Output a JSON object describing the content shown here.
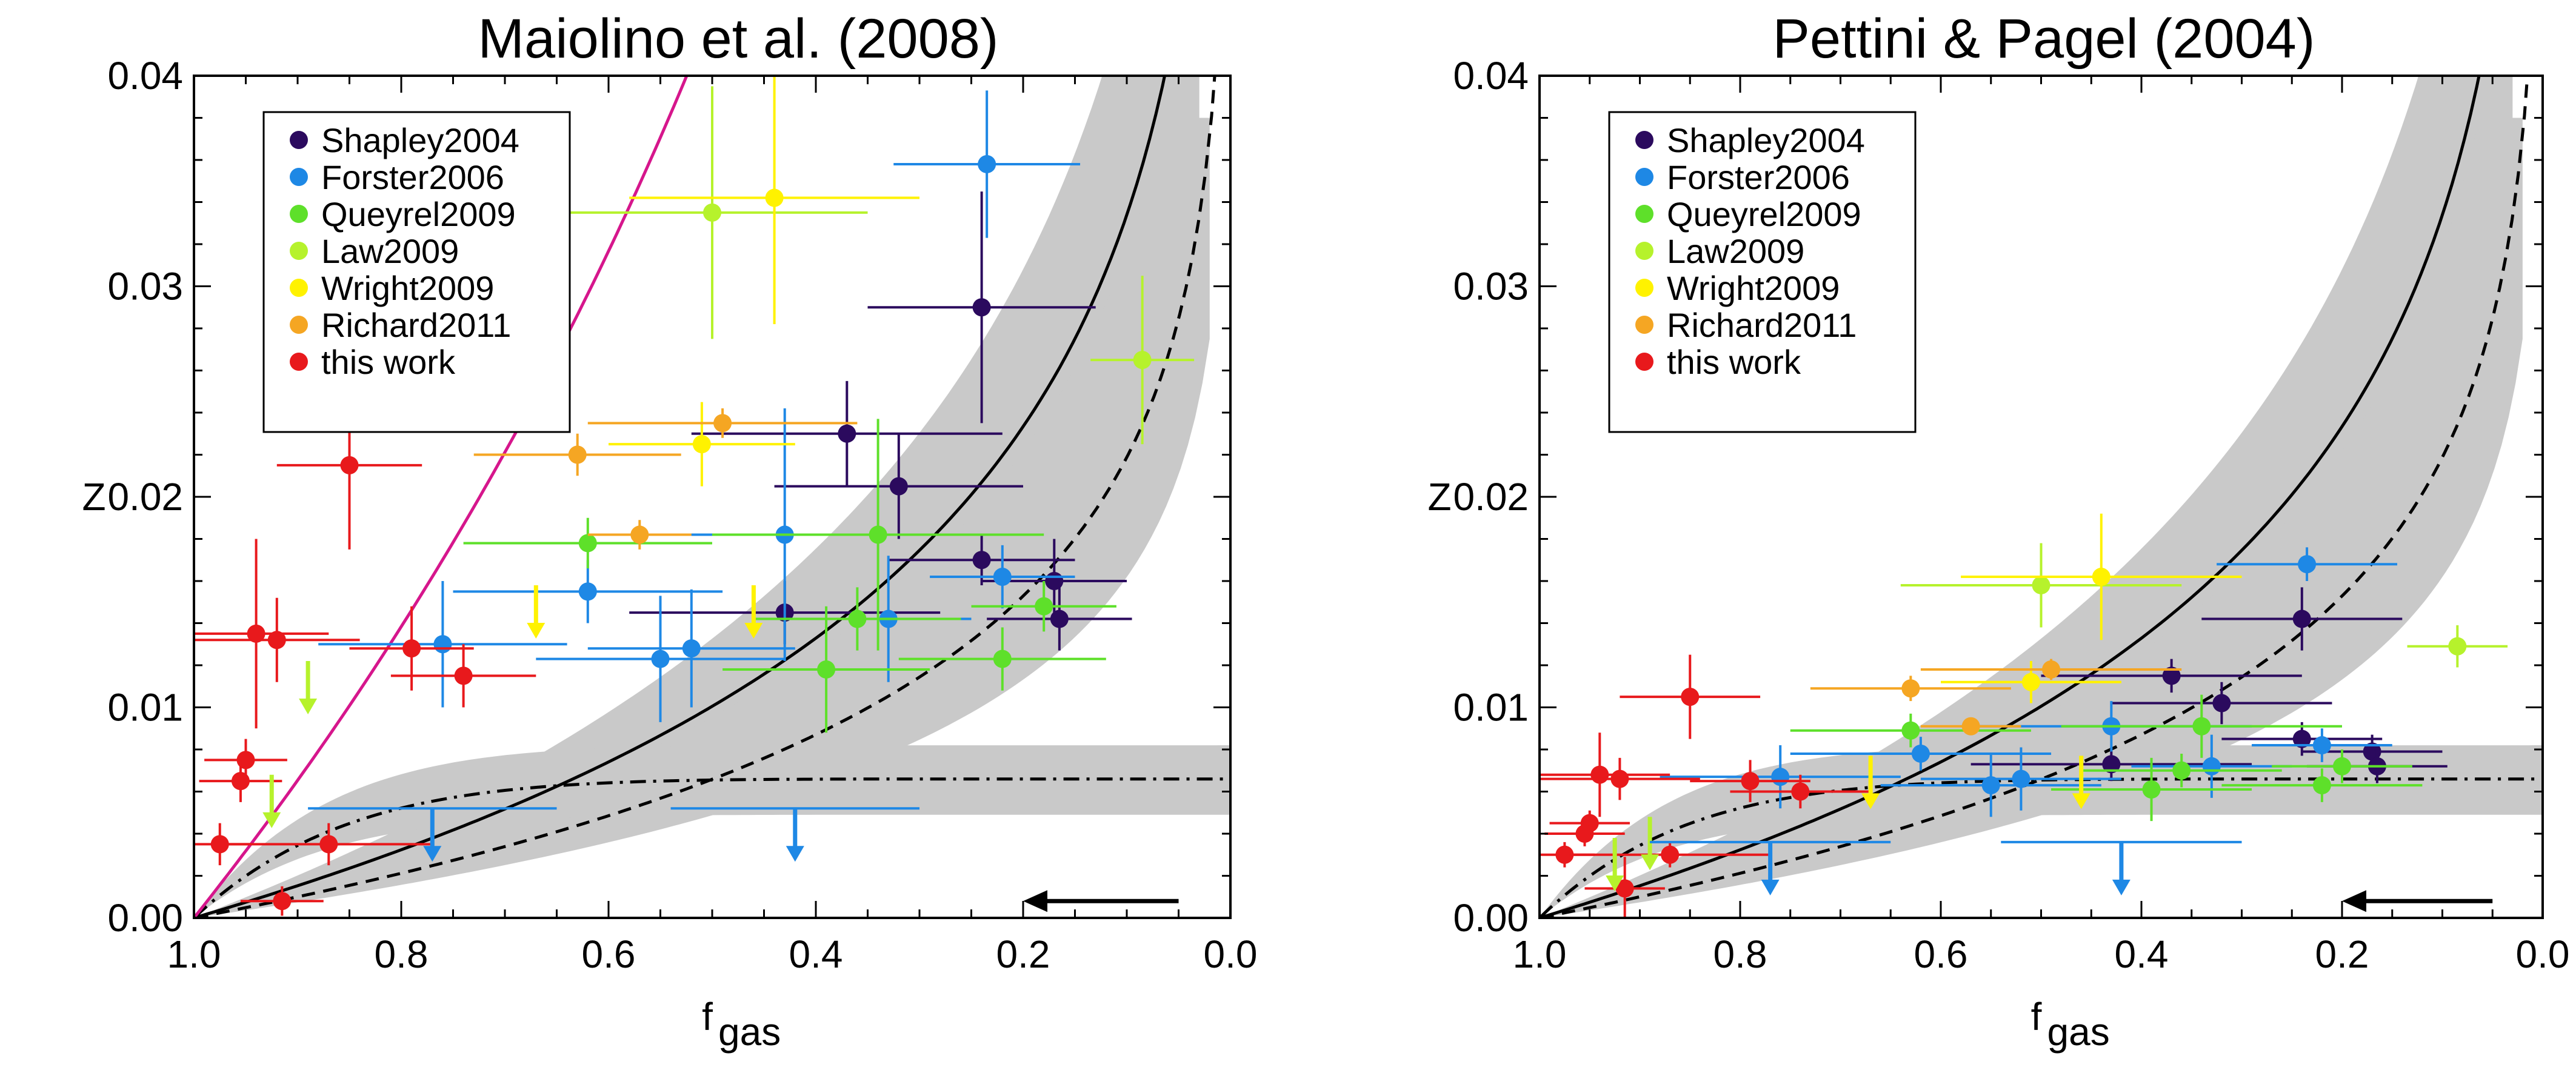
{
  "chart_data": [
    {
      "type": "scatter",
      "title": "Maiolino et al. (2008)",
      "xlabel": "f",
      "xlabel_sub": "gas",
      "ylabel": "Z",
      "xlim": [
        1.0,
        0.0
      ],
      "ylim": [
        0.0,
        0.04
      ],
      "x_ticks": [
        "1.0",
        "0.8",
        "0.6",
        "0.4",
        "0.2",
        "0.0"
      ],
      "y_ticks": [
        "0.00",
        "0.01",
        "0.02",
        "0.03",
        "0.04"
      ],
      "legend_position": "top-left",
      "legend": [
        {
          "name": "Shapley2004",
          "color": "#2b0a5e"
        },
        {
          "name": "Forster2006",
          "color": "#1e88e5"
        },
        {
          "name": "Queyrel2009",
          "color": "#5ee02a"
        },
        {
          "name": "Law2009",
          "color": "#b6f22c"
        },
        {
          "name": "Wright2009",
          "color": "#fff200"
        },
        {
          "name": "Richard2011",
          "color": "#f5a623"
        },
        {
          "name": "this work",
          "color": "#e8191c"
        }
      ],
      "series": [
        {
          "name": "Shapley2004",
          "color": "#2b0a5e",
          "points": [
            {
              "x": 0.24,
              "y": 0.029,
              "xerr": 0.11,
              "yerr": 0.0055
            },
            {
              "x": 0.37,
              "y": 0.023,
              "xerr": 0.15,
              "yerr": 0.0025
            },
            {
              "x": 0.32,
              "y": 0.0205,
              "xerr": 0.12,
              "yerr": 0.0025
            },
            {
              "x": 0.24,
              "y": 0.017,
              "xerr": 0.09,
              "yerr": 0.0012
            },
            {
              "x": 0.17,
              "y": 0.016,
              "xerr": 0.07,
              "yerr": 0.002
            },
            {
              "x": 0.165,
              "y": 0.0142,
              "xerr": 0.07,
              "yerr": 0.0015
            },
            {
              "x": 0.43,
              "y": 0.0145,
              "xerr": 0.15,
              "yerr": 0.0015
            }
          ]
        },
        {
          "name": "Forster2006",
          "color": "#1e88e5",
          "points": [
            {
              "x": 0.235,
              "y": 0.0358,
              "xerr": 0.09,
              "yerr": 0.0035
            },
            {
              "x": 0.43,
              "y": 0.0182,
              "xerr": 0.14,
              "yerr": 0.006
            },
            {
              "x": 0.62,
              "y": 0.0155,
              "xerr": 0.13,
              "yerr": 0.0015
            },
            {
              "x": 0.76,
              "y": 0.013,
              "xerr": 0.12,
              "yerr": 0.003
            },
            {
              "x": 0.55,
              "y": 0.0123,
              "xerr": 0.12,
              "yerr": 0.003
            },
            {
              "x": 0.52,
              "y": 0.0128,
              "xerr": 0.1,
              "yerr": 0.0028
            },
            {
              "x": 0.33,
              "y": 0.0142,
              "xerr": 0.08,
              "yerr": 0.003
            },
            {
              "x": 0.22,
              "y": 0.0162,
              "xerr": 0.07,
              "yerr": 0.0015
            }
          ]
        },
        {
          "name": "Queyrel2009",
          "color": "#5ee02a",
          "points": [
            {
              "x": 0.62,
              "y": 0.0178,
              "xerr": 0.12,
              "yerr": 0.0012
            },
            {
              "x": 0.34,
              "y": 0.0182,
              "xerr": 0.16,
              "yerr": 0.0055
            },
            {
              "x": 0.36,
              "y": 0.0142,
              "xerr": 0.1,
              "yerr": 0.0015
            },
            {
              "x": 0.39,
              "y": 0.0118,
              "xerr": 0.1,
              "yerr": 0.003
            },
            {
              "x": 0.22,
              "y": 0.0123,
              "xerr": 0.1,
              "yerr": 0.0015
            },
            {
              "x": 0.18,
              "y": 0.0148,
              "xerr": 0.07,
              "yerr": 0.0012
            }
          ]
        },
        {
          "name": "Law2009",
          "color": "#b6f22c",
          "points": [
            {
              "x": 0.5,
              "y": 0.0335,
              "xerr": 0.15,
              "yerr": 0.006
            },
            {
              "x": 0.085,
              "y": 0.0265,
              "xerr": 0.05,
              "yerr": 0.004
            }
          ]
        },
        {
          "name": "Wright2009",
          "color": "#fff200",
          "points": [
            {
              "x": 0.44,
              "y": 0.0342,
              "xerr": 0.14,
              "yerr": 0.006
            },
            {
              "x": 0.51,
              "y": 0.0225,
              "xerr": 0.09,
              "yerr": 0.002
            }
          ]
        },
        {
          "name": "Richard2011",
          "color": "#f5a623",
          "points": [
            {
              "x": 0.63,
              "y": 0.022,
              "xerr": 0.1,
              "yerr": 0.001
            },
            {
              "x": 0.49,
              "y": 0.0235,
              "xerr": 0.13,
              "yerr": 0.0007
            },
            {
              "x": 0.57,
              "y": 0.0182,
              "xerr": 0.05,
              "yerr": 0.0007
            }
          ]
        },
        {
          "name": "this work",
          "color": "#e8191c",
          "points": [
            {
              "x": 0.85,
              "y": 0.0215,
              "xerr": 0.07,
              "yerr": 0.004
            },
            {
              "x": 0.94,
              "y": 0.0135,
              "xerr": 0.07,
              "yerr": 0.0045
            },
            {
              "x": 0.92,
              "y": 0.0132,
              "xerr": 0.08,
              "yerr": 0.002
            },
            {
              "x": 0.79,
              "y": 0.0128,
              "xerr": 0.06,
              "yerr": 0.002
            },
            {
              "x": 0.74,
              "y": 0.0115,
              "xerr": 0.07,
              "yerr": 0.0015
            },
            {
              "x": 0.95,
              "y": 0.0075,
              "xerr": 0.04,
              "yerr": 0.001
            },
            {
              "x": 0.955,
              "y": 0.0065,
              "xerr": 0.04,
              "yerr": 0.001
            },
            {
              "x": 0.975,
              "y": 0.0035,
              "xerr": 0.03,
              "yerr": 0.001
            },
            {
              "x": 0.87,
              "y": 0.0035,
              "xerr": 0.1,
              "yerr": 0.001
            },
            {
              "x": 0.915,
              "y": 0.0008,
              "xerr": 0.04,
              "yerr": 0.0007
            }
          ]
        }
      ],
      "upper_limits": [
        {
          "x": 0.89,
          "y": 0.0122,
          "color": "#b6f22c"
        },
        {
          "x": 0.925,
          "y": 0.0068,
          "color": "#b6f22c"
        },
        {
          "x": 0.67,
          "y": 0.0158,
          "color": "#fff200"
        },
        {
          "x": 0.46,
          "y": 0.0158,
          "color": "#fff200"
        },
        {
          "x": 0.77,
          "y": 0.0052,
          "color": "#1e88e5",
          "xerr": 0.12
        },
        {
          "x": 0.42,
          "y": 0.0052,
          "color": "#1e88e5",
          "xerr": 0.12
        }
      ],
      "annotation_arrow": {
        "from_x": 0.05,
        "to_x": 0.2,
        "y": 0.0008
      }
    },
    {
      "type": "scatter",
      "title": "Pettini & Pagel (2004)",
      "xlabel": "f",
      "xlabel_sub": "gas",
      "ylabel": "Z",
      "xlim": [
        1.0,
        0.0
      ],
      "ylim": [
        0.0,
        0.04
      ],
      "x_ticks": [
        "1.0",
        "0.8",
        "0.6",
        "0.4",
        "0.2",
        "0.0"
      ],
      "y_ticks": [
        "0.00",
        "0.01",
        "0.02",
        "0.03",
        "0.04"
      ],
      "legend_position": "top-left",
      "legend": [
        {
          "name": "Shapley2004",
          "color": "#2b0a5e"
        },
        {
          "name": "Forster2006",
          "color": "#1e88e5"
        },
        {
          "name": "Queyrel2009",
          "color": "#5ee02a"
        },
        {
          "name": "Law2009",
          "color": "#b6f22c"
        },
        {
          "name": "Wright2009",
          "color": "#fff200"
        },
        {
          "name": "Richard2011",
          "color": "#f5a623"
        },
        {
          "name": "this work",
          "color": "#e8191c"
        }
      ],
      "series": [
        {
          "name": "Shapley2004",
          "color": "#2b0a5e",
          "points": [
            {
              "x": 0.24,
              "y": 0.0142,
              "xerr": 0.1,
              "yerr": 0.0015
            },
            {
              "x": 0.37,
              "y": 0.0115,
              "xerr": 0.13,
              "yerr": 0.0008
            },
            {
              "x": 0.32,
              "y": 0.0102,
              "xerr": 0.11,
              "yerr": 0.001
            },
            {
              "x": 0.24,
              "y": 0.0085,
              "xerr": 0.08,
              "yerr": 0.0008
            },
            {
              "x": 0.17,
              "y": 0.0079,
              "xerr": 0.07,
              "yerr": 0.0008
            },
            {
              "x": 0.165,
              "y": 0.0072,
              "xerr": 0.07,
              "yerr": 0.0008
            },
            {
              "x": 0.43,
              "y": 0.0073,
              "xerr": 0.14,
              "yerr": 0.0008
            }
          ]
        },
        {
          "name": "Forster2006",
          "color": "#1e88e5",
          "points": [
            {
              "x": 0.235,
              "y": 0.0168,
              "xerr": 0.09,
              "yerr": 0.0008
            },
            {
              "x": 0.43,
              "y": 0.0091,
              "xerr": 0.14,
              "yerr": 0.0012
            },
            {
              "x": 0.62,
              "y": 0.0078,
              "xerr": 0.13,
              "yerr": 0.0008
            },
            {
              "x": 0.76,
              "y": 0.0067,
              "xerr": 0.12,
              "yerr": 0.0015
            },
            {
              "x": 0.55,
              "y": 0.0063,
              "xerr": 0.11,
              "yerr": 0.0015
            },
            {
              "x": 0.52,
              "y": 0.0066,
              "xerr": 0.1,
              "yerr": 0.0015
            },
            {
              "x": 0.33,
              "y": 0.0072,
              "xerr": 0.08,
              "yerr": 0.0015
            },
            {
              "x": 0.22,
              "y": 0.0082,
              "xerr": 0.07,
              "yerr": 0.0008
            }
          ]
        },
        {
          "name": "Queyrel2009",
          "color": "#5ee02a",
          "points": [
            {
              "x": 0.63,
              "y": 0.0089,
              "xerr": 0.12,
              "yerr": 0.0008
            },
            {
              "x": 0.34,
              "y": 0.0091,
              "xerr": 0.14,
              "yerr": 0.0015
            },
            {
              "x": 0.36,
              "y": 0.007,
              "xerr": 0.1,
              "yerr": 0.0008
            },
            {
              "x": 0.39,
              "y": 0.0061,
              "xerr": 0.1,
              "yerr": 0.0015
            },
            {
              "x": 0.22,
              "y": 0.0063,
              "xerr": 0.1,
              "yerr": 0.0008
            },
            {
              "x": 0.2,
              "y": 0.0072,
              "xerr": 0.07,
              "yerr": 0.0008
            }
          ]
        },
        {
          "name": "Law2009",
          "color": "#b6f22c",
          "points": [
            {
              "x": 0.5,
              "y": 0.0158,
              "xerr": 0.14,
              "yerr": 0.002
            },
            {
              "x": 0.085,
              "y": 0.0129,
              "xerr": 0.05,
              "yerr": 0.001
            }
          ]
        },
        {
          "name": "Wright2009",
          "color": "#fff200",
          "points": [
            {
              "x": 0.44,
              "y": 0.0162,
              "xerr": 0.14,
              "yerr": 0.003
            },
            {
              "x": 0.51,
              "y": 0.0112,
              "xerr": 0.09,
              "yerr": 0.001
            }
          ]
        },
        {
          "name": "Richard2011",
          "color": "#f5a623",
          "points": [
            {
              "x": 0.63,
              "y": 0.0109,
              "xerr": 0.1,
              "yerr": 0.0006
            },
            {
              "x": 0.49,
              "y": 0.0118,
              "xerr": 0.13,
              "yerr": 0.0005
            },
            {
              "x": 0.57,
              "y": 0.0091,
              "xerr": 0.05,
              "yerr": 0.0004
            }
          ]
        },
        {
          "name": "this work",
          "color": "#e8191c",
          "points": [
            {
              "x": 0.85,
              "y": 0.0105,
              "xerr": 0.07,
              "yerr": 0.002
            },
            {
              "x": 0.94,
              "y": 0.0068,
              "xerr": 0.07,
              "yerr": 0.002
            },
            {
              "x": 0.92,
              "y": 0.0066,
              "xerr": 0.08,
              "yerr": 0.001
            },
            {
              "x": 0.79,
              "y": 0.0065,
              "xerr": 0.06,
              "yerr": 0.001
            },
            {
              "x": 0.74,
              "y": 0.006,
              "xerr": 0.07,
              "yerr": 0.0008
            },
            {
              "x": 0.95,
              "y": 0.0045,
              "xerr": 0.04,
              "yerr": 0.0006
            },
            {
              "x": 0.955,
              "y": 0.004,
              "xerr": 0.04,
              "yerr": 0.0006
            },
            {
              "x": 0.975,
              "y": 0.003,
              "xerr": 0.03,
              "yerr": 0.0006
            },
            {
              "x": 0.87,
              "y": 0.003,
              "xerr": 0.1,
              "yerr": 0.0006
            },
            {
              "x": 0.915,
              "y": 0.0014,
              "xerr": 0.04,
              "yerr": 0.0015
            }
          ]
        }
      ],
      "upper_limits": [
        {
          "x": 0.89,
          "y": 0.0048,
          "color": "#b6f22c"
        },
        {
          "x": 0.925,
          "y": 0.0038,
          "color": "#b6f22c"
        },
        {
          "x": 0.67,
          "y": 0.0077,
          "color": "#fff200"
        },
        {
          "x": 0.46,
          "y": 0.0077,
          "color": "#fff200"
        },
        {
          "x": 0.77,
          "y": 0.0036,
          "color": "#1e88e5",
          "xerr": 0.12
        },
        {
          "x": 0.42,
          "y": 0.0036,
          "color": "#1e88e5",
          "xerr": 0.12
        }
      ],
      "annotation_arrow": {
        "from_x": 0.05,
        "to_x": 0.2,
        "y": 0.0008
      }
    }
  ]
}
